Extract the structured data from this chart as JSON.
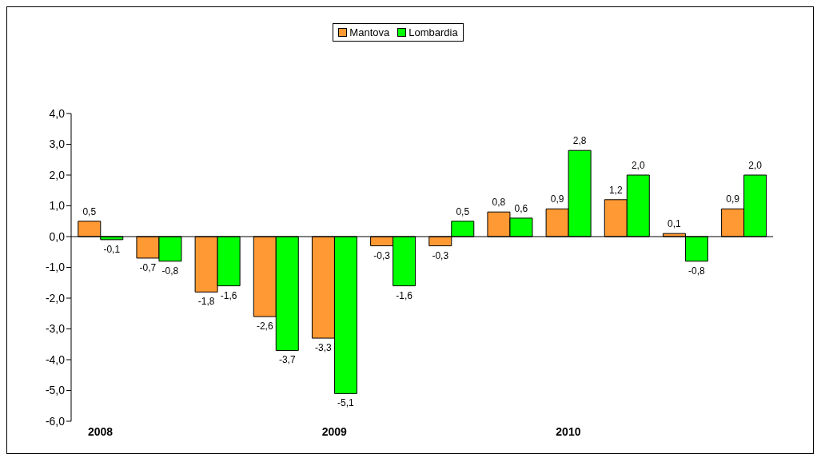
{
  "chart_data": {
    "type": "bar",
    "categories": [
      "2008",
      null,
      null,
      null,
      "2009",
      null,
      null,
      null,
      "2010",
      null,
      null,
      null
    ],
    "series": [
      {
        "name": "Mantova",
        "color": "#ff9933",
        "values": [
          0.5,
          -0.7,
          -1.8,
          -2.6,
          -3.3,
          -0.3,
          -0.3,
          0.8,
          0.9,
          1.2,
          0.1,
          0.9
        ],
        "value_labels": [
          "0,5",
          "-0,7",
          "-1,8",
          "-2,6",
          "-3,3",
          "-0,3",
          "-0,3",
          "0,8",
          "0,9",
          "1,2",
          "0,1",
          "0,9"
        ]
      },
      {
        "name": "Lombardia",
        "color": "#00ff00",
        "values": [
          -0.1,
          -0.8,
          -1.6,
          -3.7,
          -5.1,
          -1.6,
          0.5,
          0.6,
          2.8,
          2.0,
          -0.8,
          2.0
        ],
        "value_labels": [
          "-0,1",
          "-0,8",
          "-1,6",
          "-3,7",
          "-5,1",
          "-1,6",
          "0,5",
          "0,6",
          "2,8",
          "2,0",
          "-0,8",
          "2,0"
        ]
      }
    ],
    "ylim": [
      -6,
      4
    ],
    "yticks": [
      {
        "value": -6,
        "label": "-6,0"
      },
      {
        "value": -5,
        "label": "-5,0"
      },
      {
        "value": -4,
        "label": "-4,0"
      },
      {
        "value": -3,
        "label": "-3,0"
      },
      {
        "value": -2,
        "label": "-2,0"
      },
      {
        "value": -1,
        "label": "-1,0"
      },
      {
        "value": 0,
        "label": "0,0"
      },
      {
        "value": 1,
        "label": "1,0"
      },
      {
        "value": 2,
        "label": "2,0"
      },
      {
        "value": 3,
        "label": "3,0"
      },
      {
        "value": 4,
        "label": "4,0"
      }
    ],
    "grid": false,
    "ref_lines": [
      {
        "axis": "y",
        "value": 0,
        "color": "#000000"
      }
    ],
    "legend": "top"
  }
}
